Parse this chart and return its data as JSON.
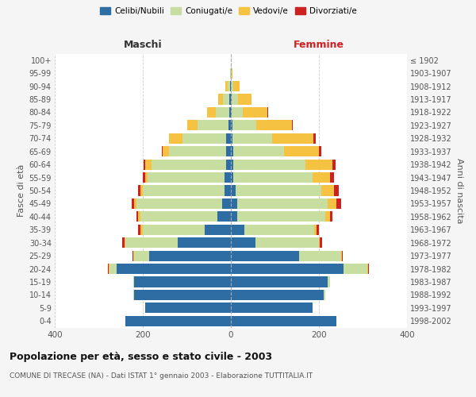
{
  "age_groups": [
    "0-4",
    "5-9",
    "10-14",
    "15-19",
    "20-24",
    "25-29",
    "30-34",
    "35-39",
    "40-44",
    "45-49",
    "50-54",
    "55-59",
    "60-64",
    "65-69",
    "70-74",
    "75-79",
    "80-84",
    "85-89",
    "90-94",
    "95-99",
    "100+"
  ],
  "birth_years": [
    "1998-2002",
    "1993-1997",
    "1988-1992",
    "1983-1987",
    "1978-1982",
    "1973-1977",
    "1968-1972",
    "1963-1967",
    "1958-1962",
    "1953-1957",
    "1948-1952",
    "1943-1947",
    "1938-1942",
    "1933-1937",
    "1928-1932",
    "1923-1927",
    "1918-1922",
    "1913-1917",
    "1908-1912",
    "1903-1907",
    "≤ 1902"
  ],
  "males": {
    "celibi": [
      240,
      195,
      220,
      220,
      260,
      185,
      120,
      60,
      30,
      20,
      15,
      15,
      10,
      10,
      10,
      5,
      4,
      3,
      2,
      0,
      0
    ],
    "coniugati": [
      0,
      0,
      2,
      2,
      15,
      35,
      120,
      140,
      175,
      195,
      185,
      175,
      170,
      130,
      100,
      70,
      30,
      15,
      5,
      2,
      0
    ],
    "vedovi": [
      0,
      0,
      0,
      0,
      2,
      2,
      2,
      5,
      5,
      5,
      5,
      5,
      15,
      15,
      30,
      25,
      20,
      10,
      5,
      0,
      0
    ],
    "divorziati": [
      0,
      0,
      0,
      0,
      2,
      2,
      5,
      5,
      5,
      5,
      5,
      5,
      3,
      2,
      0,
      0,
      0,
      0,
      0,
      0,
      0
    ]
  },
  "females": {
    "nubili": [
      240,
      185,
      210,
      220,
      255,
      155,
      55,
      30,
      15,
      15,
      10,
      5,
      5,
      5,
      3,
      3,
      2,
      2,
      0,
      0,
      0
    ],
    "coniugate": [
      0,
      0,
      5,
      5,
      55,
      95,
      145,
      160,
      200,
      205,
      195,
      180,
      165,
      115,
      90,
      55,
      25,
      15,
      5,
      2,
      0
    ],
    "vedove": [
      0,
      0,
      0,
      0,
      2,
      2,
      2,
      5,
      10,
      20,
      30,
      40,
      60,
      80,
      95,
      80,
      55,
      30,
      15,
      2,
      0
    ],
    "divorziate": [
      0,
      0,
      0,
      0,
      2,
      2,
      5,
      5,
      5,
      10,
      10,
      10,
      8,
      5,
      5,
      2,
      2,
      0,
      0,
      0,
      0
    ]
  },
  "colors": {
    "celibi": "#2e6da4",
    "coniugati": "#c8dda0",
    "vedovi": "#f5c242",
    "divorziati": "#cc2222"
  },
  "legend_labels": [
    "Celibi/Nubili",
    "Coniugati/e",
    "Vedovi/e",
    "Divorziati/e"
  ],
  "title": "Popolazione per età, sesso e stato civile - 2003",
  "subtitle": "COMUNE DI TRECASE (NA) - Dati ISTAT 1° gennaio 2003 - Elaborazione TUTTITALIA.IT",
  "label_maschi": "Maschi",
  "label_femmine": "Femmine",
  "ylabel_left": "Fasce di età",
  "ylabel_right": "Anni di nascita",
  "xlim": 400,
  "bg_color": "#f5f5f5",
  "plot_bg": "#ffffff",
  "grid_color": "#cccccc"
}
